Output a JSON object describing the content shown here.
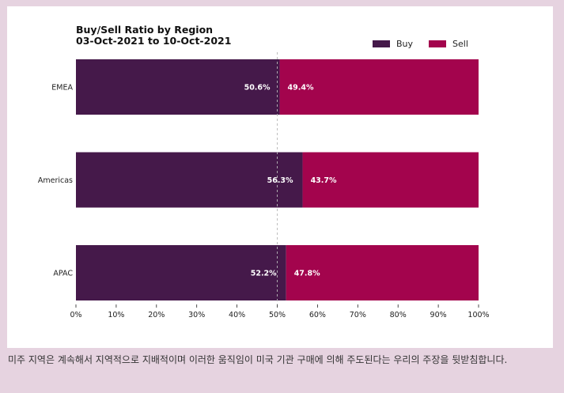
{
  "chart_data": {
    "type": "bar",
    "orientation": "horizontal",
    "stacked": true,
    "title_line1": "Buy/Sell Ratio by Region",
    "title_line2": "03-Oct-2021 to 10-Oct-2021",
    "categories": [
      "EMEA",
      "Americas",
      "APAC"
    ],
    "series": [
      {
        "name": "Buy",
        "color": "#45194a",
        "values": [
          50.6,
          56.3,
          52.2
        ],
        "labels": [
          "50.6%",
          "56.3%",
          "52.2%"
        ]
      },
      {
        "name": "Sell",
        "color": "#a3044d",
        "values": [
          49.4,
          43.7,
          47.8
        ],
        "labels": [
          "49.4%",
          "43.7%",
          "47.8%"
        ]
      }
    ],
    "xlim": [
      0,
      100
    ],
    "x_ticks": [
      0,
      10,
      20,
      30,
      40,
      50,
      60,
      70,
      80,
      90,
      100
    ],
    "x_tick_labels": [
      "0%",
      "10%",
      "20%",
      "30%",
      "40%",
      "50%",
      "60%",
      "70%",
      "80%",
      "90%",
      "100%"
    ],
    "reference_line": 50,
    "legend_position": "top-right",
    "grid": false
  },
  "caption": "미주 지역은 계속해서 지역적으로 지배적이며 이러한 움직임이 미국 기관 구매에 의해 주도된다는 우리의 주장을 뒷받침합니다."
}
